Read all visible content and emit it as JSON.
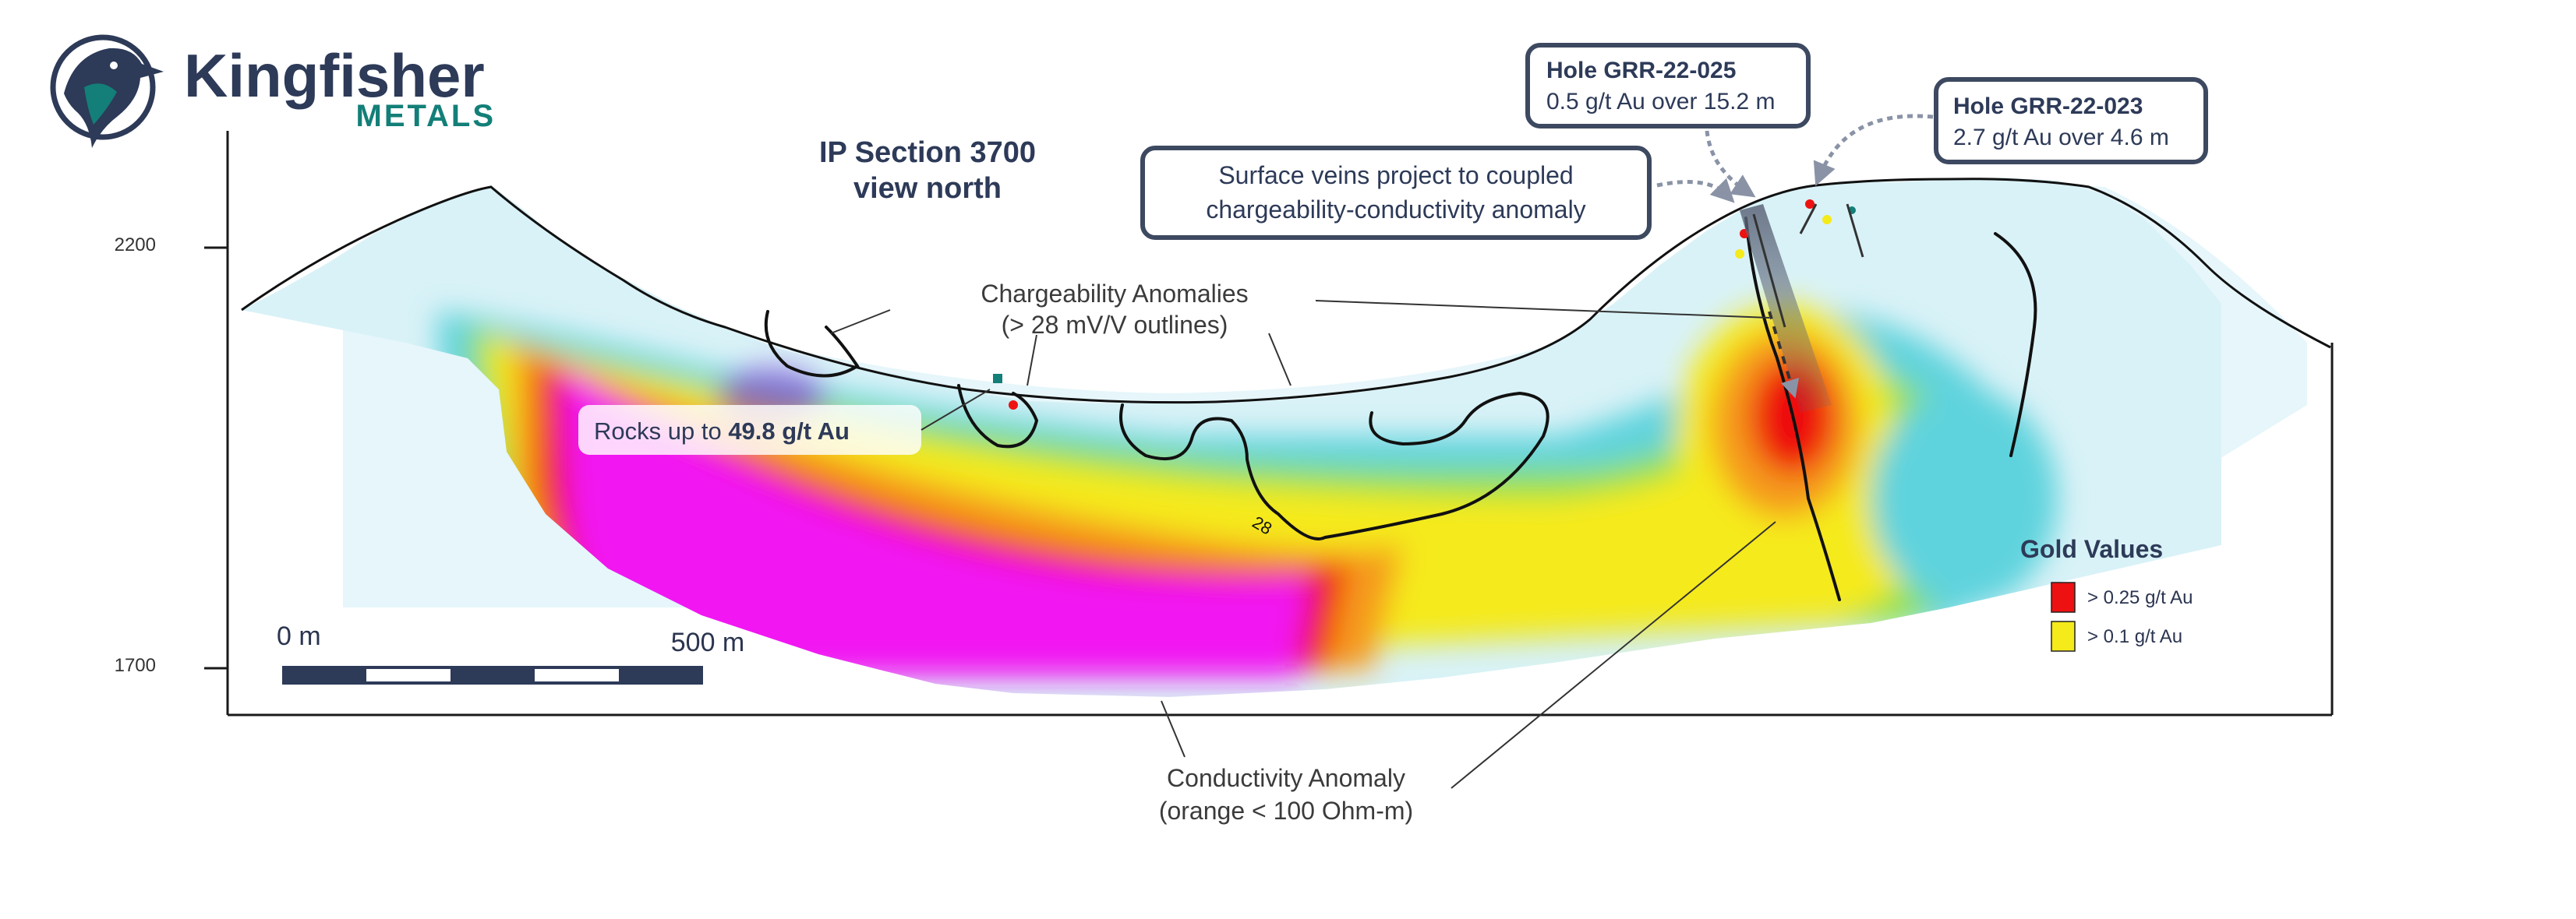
{
  "brand": {
    "name": "Kingfisher",
    "tagline": "METALS",
    "logo_icon": "kingfisher-bird-icon",
    "colors": {
      "navy": "#2d3a58",
      "teal": "#137f78"
    }
  },
  "section": {
    "title_line1": "IP Section 3700",
    "title_line2": "view north"
  },
  "elevation_axis": {
    "ticks": [
      {
        "label": "2200",
        "value": 2200
      },
      {
        "label": "1700",
        "value": 1700
      }
    ]
  },
  "scale_bar": {
    "start_label": "0 m",
    "end_label": "500 m"
  },
  "callouts": {
    "surface_veins": {
      "line1": "Surface veins project to coupled",
      "line2": "chargeability-conductivity anomaly"
    },
    "hole_025": {
      "title": "Hole GRR-22-025",
      "detail": "0.5 g/t Au over 15.2 m"
    },
    "hole_023": {
      "title": "Hole GRR-22-023",
      "detail": "2.7 g/t Au over 4.6 m"
    },
    "rocks": {
      "prefix": "Rocks up to ",
      "value": "49.8 g/t Au"
    }
  },
  "annotations": {
    "chargeability": {
      "line1": "Chargeability Anomalies",
      "line2": "(> 28 mV/V outlines)",
      "contour_label": "28"
    },
    "conductivity": {
      "line1": "Conductivity Anomaly",
      "line2": "(orange < 100 Ohm-m)"
    }
  },
  "legend": {
    "title": "Gold Values",
    "items": [
      {
        "label": "> 0.25 g/t Au",
        "color": "#ee1111"
      },
      {
        "label": "> 0.1 g/t Au",
        "color": "#f5ea1a"
      }
    ]
  }
}
